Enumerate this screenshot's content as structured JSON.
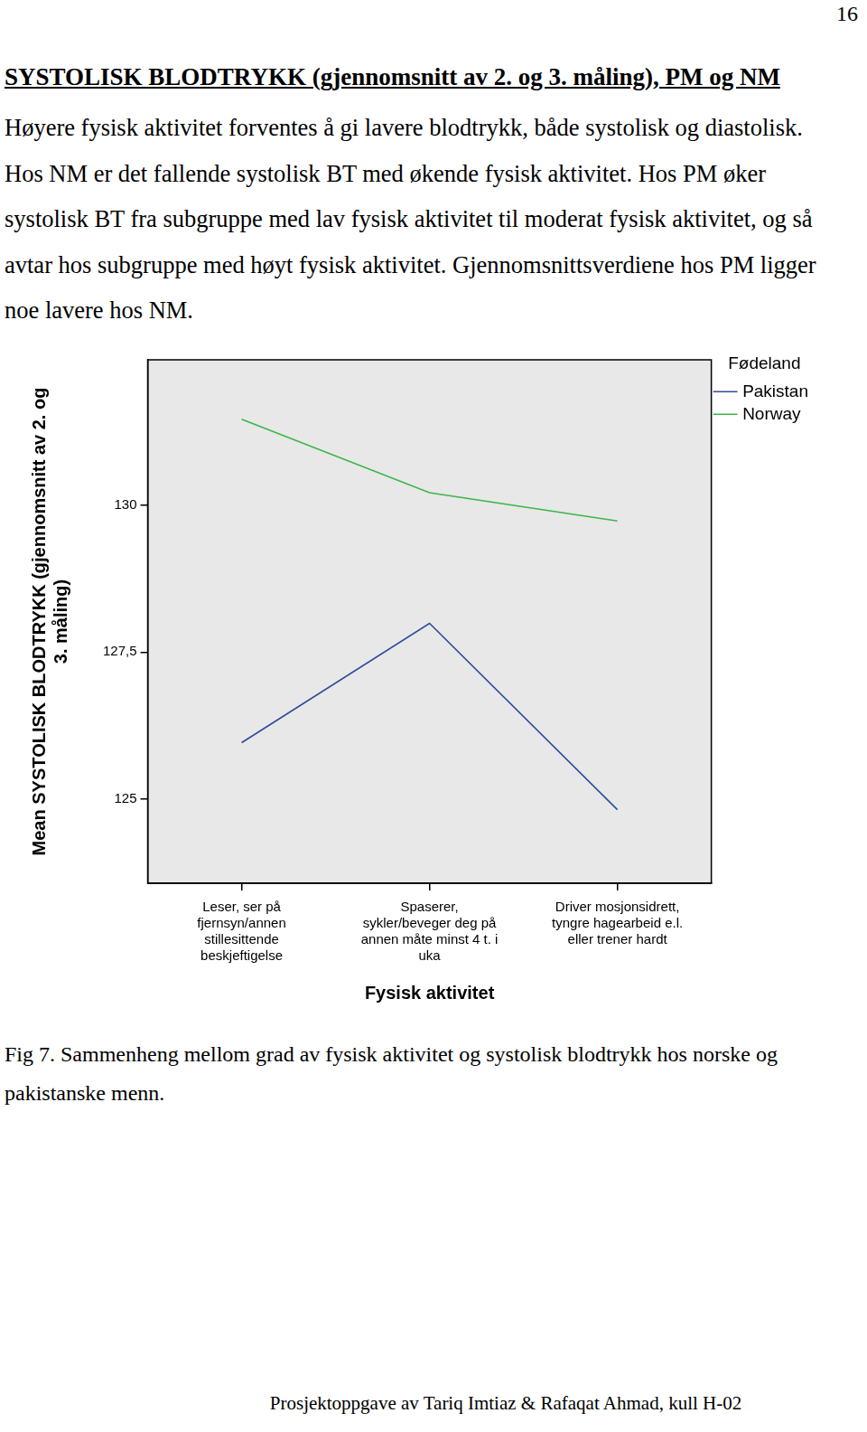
{
  "page_number": "16",
  "heading": "SYSTOLISK BLODTRYKK (gjennomsnitt av 2. og 3. måling), PM og NM",
  "paragraph": "Høyere fysisk aktivitet forventes å gi lavere blodtrykk, både systolisk og diastolisk. Hos NM er det fallende systolisk BT med økende fysisk aktivitet. Hos PM øker systolisk BT fra subgruppe med lav fysisk aktivitet til moderat fysisk aktivitet, og så avtar hos subgruppe med høyt fysisk aktivitet. Gjennomsnittsverdiene hos PM ligger noe lavere hos NM.",
  "chart_data": {
    "type": "line",
    "x_label": "Fysisk aktivitet",
    "y_label": [
      "Mean SYSTOLISK BLODTRYKK (gjennomsnitt av 2. og",
      "3. måling)"
    ],
    "legend_title": "Fødeland",
    "legend": "right",
    "categories": [
      [
        "Leser, ser på",
        "fjernsyn/annen",
        "stillesittende",
        "beskjeftigelse"
      ],
      [
        "Spaserer,",
        "sykler/beveger deg på",
        "annen måte minst 4 t. i",
        "uka"
      ],
      [
        "Driver mosjonsidrett,",
        "tyngre hagearbeid e.l.",
        "eller trener hardt"
      ]
    ],
    "series": [
      {
        "name": "Pakistan",
        "color": "#2f4b9a",
        "values": [
          125.96,
          127.99,
          124.82
        ]
      },
      {
        "name": "Norway",
        "color": "#3cb54a",
        "values": [
          131.46,
          130.21,
          129.73
        ]
      }
    ],
    "ylim": [
      123.57,
      132.47
    ],
    "yticks": [
      125,
      {
        "value": 127.5,
        "label": "127,5"
      },
      130
    ],
    "grid": false
  },
  "caption": "Fig 7. Sammenheng mellom grad av fysisk aktivitet og systolisk blodtrykk hos norske og pakistanske menn.",
  "footer": "Prosjektoppgave av Tariq Imtiaz & Rafaqat Ahmad, kull H-02"
}
